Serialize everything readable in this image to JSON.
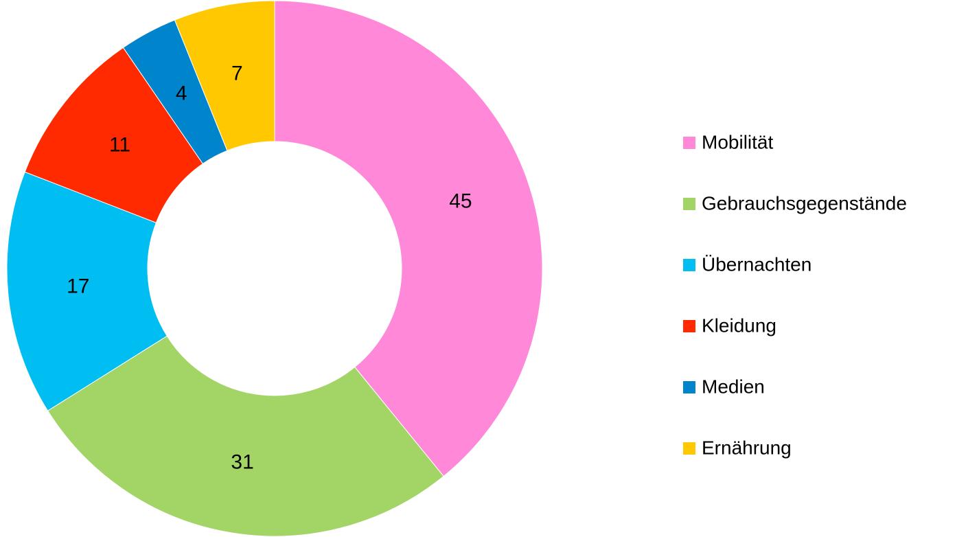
{
  "chart_data": {
    "type": "donut",
    "categories": [
      "Mobilität",
      "Gebrauchsgegenstände",
      "Übernachten",
      "Kleidung",
      "Medien",
      "Ernährung"
    ],
    "values": [
      45,
      31,
      17,
      11,
      4,
      7
    ],
    "colors": [
      "#ff88d8",
      "#a2d466",
      "#00bef2",
      "#ff2a00",
      "#0084cc",
      "#ffc800"
    ],
    "legend": "right"
  }
}
